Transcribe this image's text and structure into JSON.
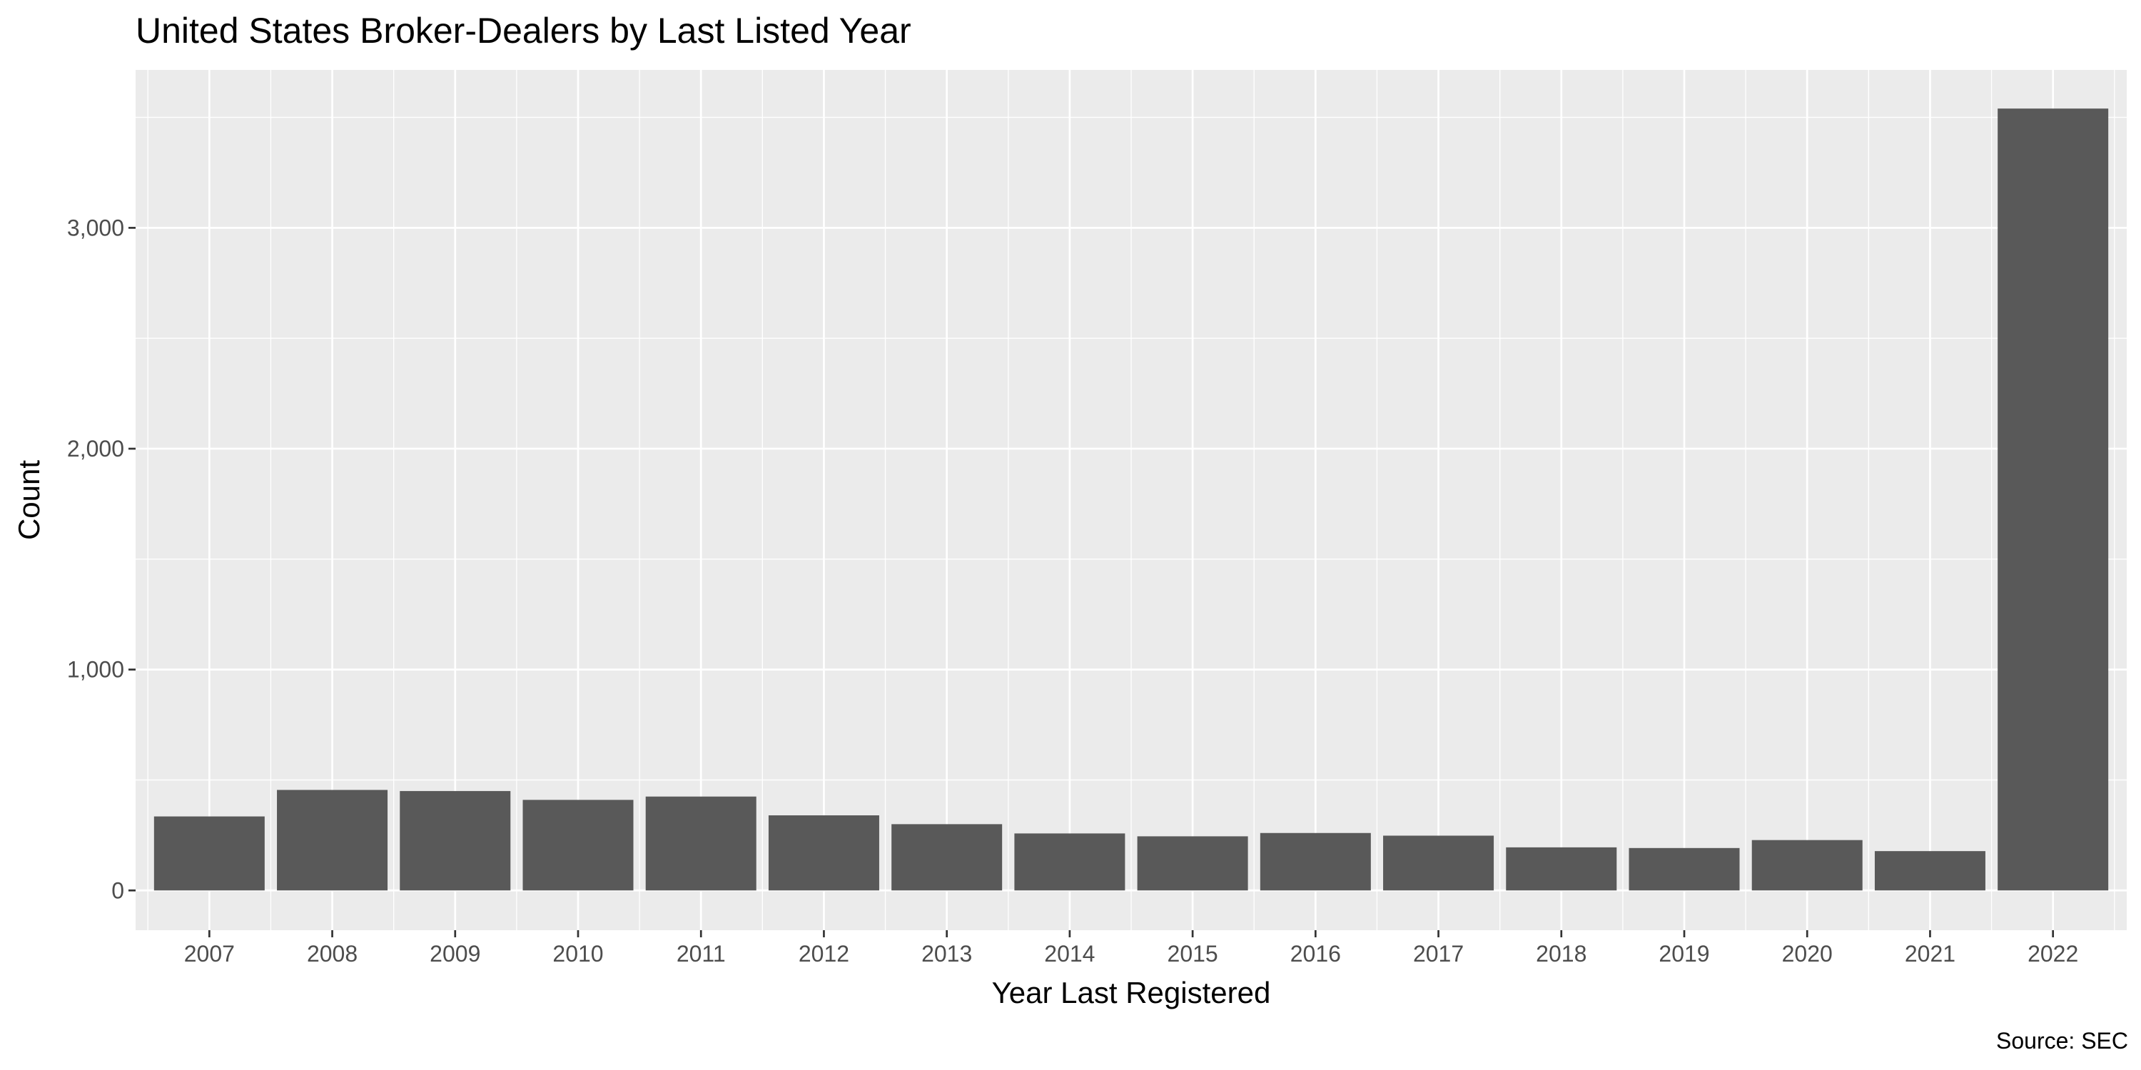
{
  "chart_data": {
    "type": "bar",
    "title": "United States Broker-Dealers by Last Listed Year",
    "xlabel": "Year Last Registered",
    "ylabel": "Count",
    "caption": "Source: SEC",
    "categories": [
      "2007",
      "2008",
      "2009",
      "2010",
      "2011",
      "2012",
      "2013",
      "2014",
      "2015",
      "2016",
      "2017",
      "2018",
      "2019",
      "2020",
      "2021",
      "2022"
    ],
    "values": [
      335,
      455,
      450,
      410,
      425,
      340,
      300,
      258,
      245,
      260,
      248,
      195,
      192,
      228,
      178,
      3540
    ],
    "y_ticks": [
      0,
      1000,
      2000,
      3000
    ],
    "y_tick_labels": [
      "0",
      "1,000",
      "2,000",
      "3,000"
    ],
    "ylim": [
      -180,
      3715
    ],
    "grid": true,
    "colors": {
      "bar": "#595959",
      "panel": "#ebebeb",
      "grid": "#ffffff",
      "tick_text": "#4d4d4d",
      "tick_mark": "#333333"
    }
  }
}
